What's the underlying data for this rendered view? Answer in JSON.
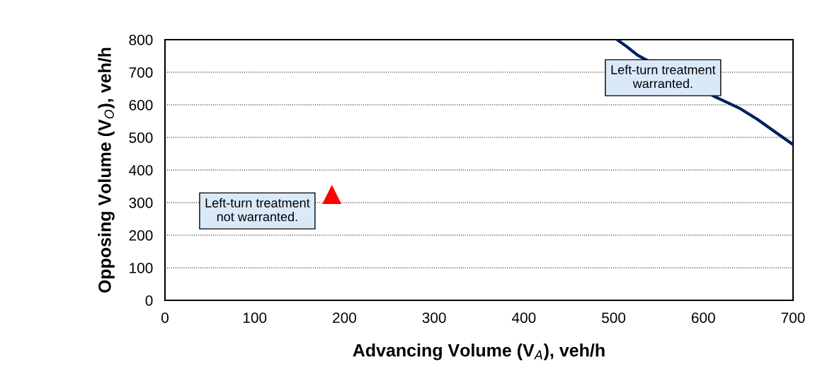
{
  "chart_data": {
    "type": "line",
    "xlabel": "Advancing Volume (V$_{A}$), veh/h",
    "ylabel": "Opposing Volume (V$_{O}$), veh/h",
    "xlim": [
      0,
      700
    ],
    "ylim": [
      0,
      800
    ],
    "xticks": [
      0,
      100,
      200,
      300,
      400,
      500,
      600,
      700
    ],
    "yticks": [
      0,
      100,
      200,
      300,
      400,
      500,
      600,
      700,
      800
    ],
    "grid": "y",
    "line_style": "solid",
    "marker": "none",
    "series": [
      {
        "color": "#002060",
        "x": [
          504,
          515,
          527,
          612,
          640,
          660,
          680,
          700
        ],
        "values": [
          800,
          778,
          752,
          626,
          590,
          556,
          517,
          478
        ]
      },
      {
        "type": "scatter",
        "color": "#ff0000",
        "marker": "triangle",
        "x": [
          186
        ],
        "values": [
          325
        ]
      }
    ],
    "annotations": [
      "Left-turn treatment\nwarranted.",
      "Left-turn treatment\nnot warranted."
    ]
  }
}
